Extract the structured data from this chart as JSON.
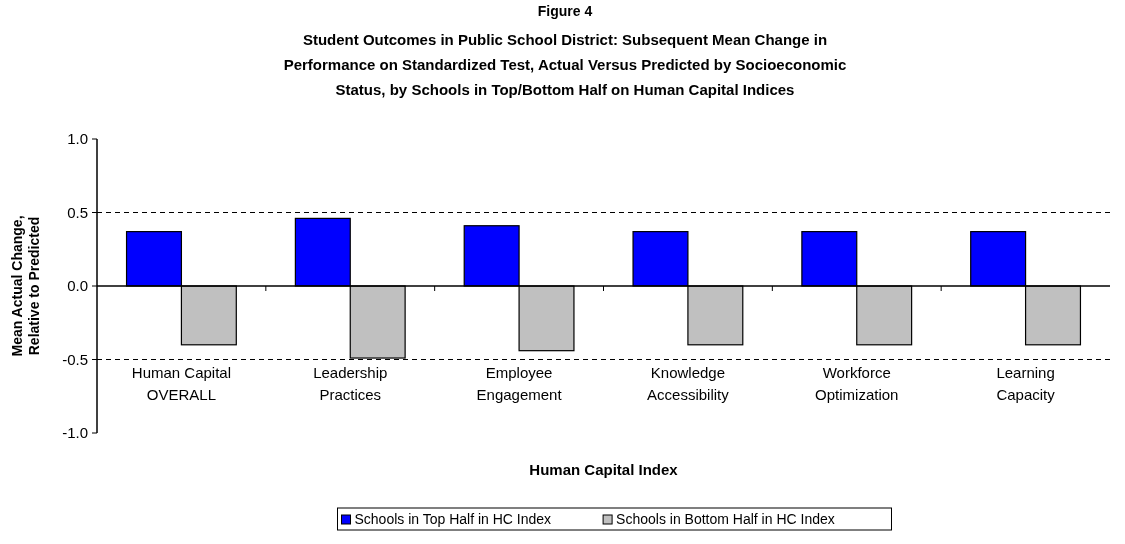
{
  "chart_data": {
    "type": "bar",
    "title": "Figure 4",
    "subtitle": "Student Outcomes in Public School District: Subsequent Mean Change in Performance on Standardized Test, Actual Versus Predicted by Socioeconomic Status, by Schools in Top/Bottom Half on Human Capital Indices",
    "xlabel": "Human Capital Index",
    "ylabel": "Mean Actual Change, Relative to Predicted",
    "categories": [
      "Human Capital OVERALL",
      "Leadership Practices",
      "Employee Engagement",
      "Knowledge Accessibility",
      "Workforce Optimization",
      "Learning Capacity"
    ],
    "series": [
      {
        "name": "Schools in Top Half in HC Index",
        "color": "#0000ff",
        "values": [
          0.37,
          0.46,
          0.41,
          0.37,
          0.37,
          0.37
        ]
      },
      {
        "name": "Schools in Bottom Half in HC Index",
        "color": "#c0c0c0",
        "values": [
          -0.4,
          -0.49,
          -0.44,
          -0.4,
          -0.4,
          -0.4
        ]
      }
    ],
    "ylim": [
      -1,
      1
    ],
    "yticks": [
      {
        "value": -1,
        "label": "-1.0"
      },
      {
        "value": -0.5,
        "label": "-0.5"
      },
      {
        "value": 0,
        "label": "0.0"
      },
      {
        "value": 0.5,
        "label": "0.5"
      },
      {
        "value": 1,
        "label": "1.0"
      }
    ],
    "ref_lines": [
      {
        "axis": "y",
        "value": 0.5,
        "line_style": "dashed"
      },
      {
        "axis": "y",
        "value": -0.5,
        "line_style": "dashed"
      }
    ],
    "legend": "bottom"
  }
}
